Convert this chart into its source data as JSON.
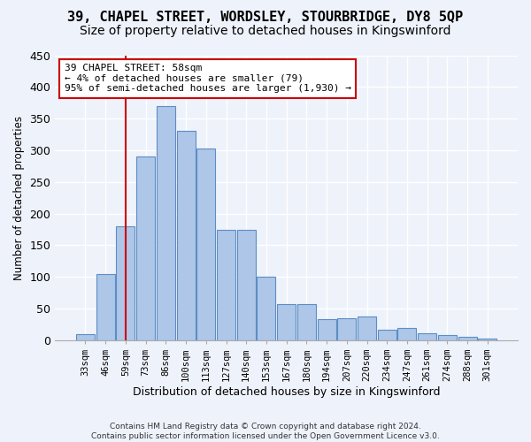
{
  "title1": "39, CHAPEL STREET, WORDSLEY, STOURBRIDGE, DY8 5QP",
  "title2": "Size of property relative to detached houses in Kingswinford",
  "xlabel": "Distribution of detached houses by size in Kingswinford",
  "ylabel": "Number of detached properties",
  "footnote": "Contains HM Land Registry data © Crown copyright and database right 2024.\nContains public sector information licensed under the Open Government Licence v3.0.",
  "bar_labels": [
    "33sqm",
    "46sqm",
    "59sqm",
    "73sqm",
    "86sqm",
    "100sqm",
    "113sqm",
    "127sqm",
    "140sqm",
    "153sqm",
    "167sqm",
    "180sqm",
    "194sqm",
    "207sqm",
    "220sqm",
    "234sqm",
    "247sqm",
    "261sqm",
    "274sqm",
    "288sqm",
    "301sqm"
  ],
  "bar_values": [
    10,
    105,
    180,
    290,
    370,
    330,
    303,
    175,
    175,
    100,
    57,
    57,
    33,
    35,
    37,
    16,
    19,
    11,
    8,
    5,
    3
  ],
  "bar_color": "#aec6e8",
  "bar_edge_color": "#5b8ec4",
  "annotation_text": "39 CHAPEL STREET: 58sqm\n← 4% of detached houses are smaller (79)\n95% of semi-detached houses are larger (1,930) →",
  "annotation_box_color": "#ffffff",
  "annotation_box_edge": "#cc0000",
  "vline_x_label": "59sqm",
  "vline_color": "#cc0000",
  "ylim": [
    0,
    450
  ],
  "yticks": [
    0,
    50,
    100,
    150,
    200,
    250,
    300,
    350,
    400,
    450
  ],
  "bg_color": "#eef2fb",
  "grid_color": "#ffffff",
  "title_fontsize": 11,
  "subtitle_fontsize": 10
}
